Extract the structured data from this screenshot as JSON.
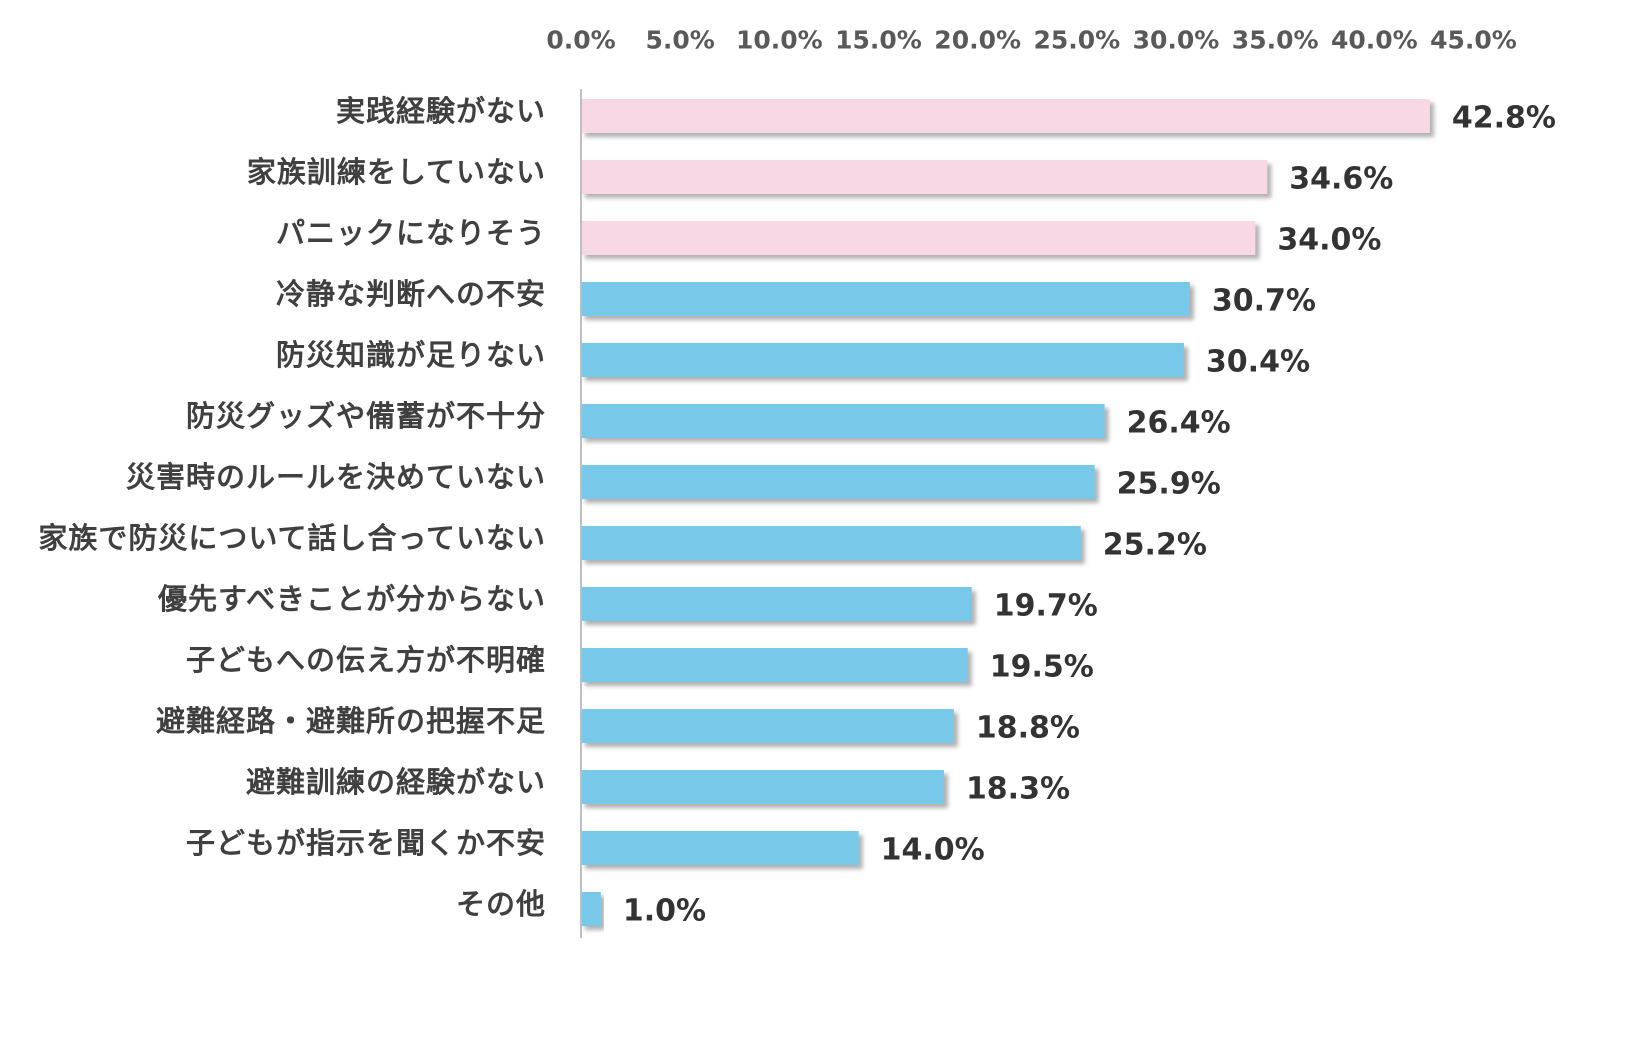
{
  "chart_data": {
    "type": "bar",
    "orientation": "horizontal",
    "categories": [
      "実践経験がない",
      "家族訓練をしていない",
      "パニックになりそう",
      "冷静な判断への不安",
      "防災知識が足りない",
      "防災グッズや備蓄が不十分",
      "災害時のルールを決めていない",
      "家族で防災について話し合っていない",
      "優先すべきことが分からない",
      "子どもへの伝え方が不明確",
      "避難経路・避難所の把握不足",
      "避難訓練の経験がない",
      "子どもが指示を聞くか不安",
      "その他"
    ],
    "values": [
      42.8,
      34.6,
      34.0,
      30.7,
      30.4,
      26.4,
      25.9,
      25.2,
      19.7,
      19.5,
      18.8,
      18.3,
      14.0,
      1.0
    ],
    "value_labels": [
      "42.8%",
      "34.6%",
      "34.0%",
      "30.7%",
      "30.4%",
      "26.4%",
      "25.9%",
      "25.2%",
      "19.7%",
      "19.5%",
      "18.8%",
      "18.3%",
      "14.0%",
      "1.0%"
    ],
    "bar_colors": [
      "#F9D8E6",
      "#F9D8E6",
      "#F9D8E6",
      "#78C8EA",
      "#78C8EA",
      "#78C8EA",
      "#78C8EA",
      "#78C8EA",
      "#78C8EA",
      "#78C8EA",
      "#78C8EA",
      "#78C8EA",
      "#78C8EA",
      "#78C8EA"
    ],
    "xlim": [
      0,
      45
    ],
    "x_ticks": [
      0,
      5,
      10,
      15,
      20,
      25,
      30,
      35,
      40,
      45
    ],
    "x_tick_labels": [
      "0.0%",
      "5.0%",
      "10.0%",
      "15.0%",
      "20.0%",
      "25.0%",
      "30.0%",
      "35.0%",
      "40.0%",
      "45.0%"
    ],
    "x_axis_position": "top",
    "grid": false,
    "legend": false
  }
}
